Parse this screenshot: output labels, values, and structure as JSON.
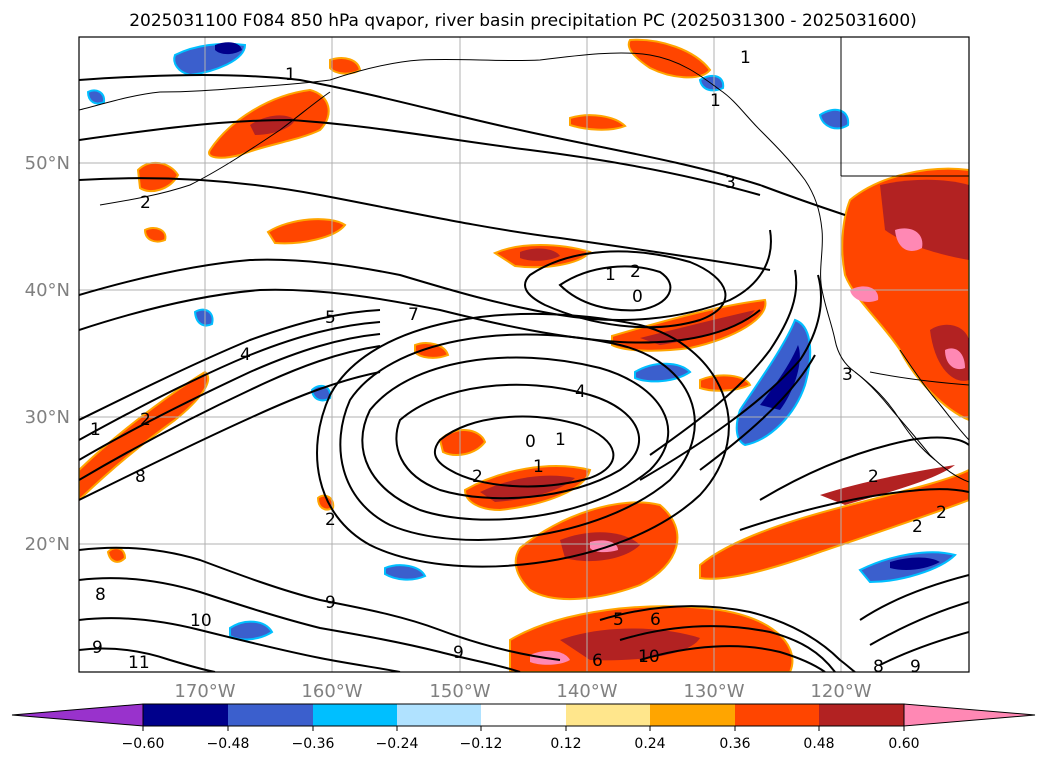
{
  "title": "2025031100 F084 850 hPa qvapor, river basin precipitation PC (2025031300 - 2025031600)",
  "map": {
    "lat_labels": [
      "50°N",
      "40°N",
      "30°N",
      "20°N"
    ],
    "lon_labels": [
      "170°W",
      "160°W",
      "150°W",
      "140°W",
      "130°W",
      "120°W"
    ],
    "axis_label_color": "#808080",
    "contour_labels": [
      "1",
      "1",
      "1",
      "3",
      "2",
      "1",
      "2",
      "0",
      "5",
      "7",
      "4",
      "4",
      "1",
      "2",
      "8",
      "0",
      "1",
      "2",
      "1",
      "2",
      "2",
      "2",
      "8",
      "9",
      "10",
      "9",
      "11",
      "5",
      "6",
      "9",
      "10",
      "8",
      "9",
      "6",
      "3",
      "2"
    ]
  },
  "colorbar": {
    "ticks": [
      "−0.60",
      "−0.48",
      "−0.36",
      "−0.24",
      "−0.12",
      "0.12",
      "0.24",
      "0.36",
      "0.48",
      "0.60"
    ],
    "colors": [
      "#9932cc",
      "#00008b",
      "#3b5fcd",
      "#00bfff",
      "#b0e2ff",
      "#ffffff",
      "#ffe68c",
      "#ffa500",
      "#ff4500",
      "#b22222",
      "#ff88b4"
    ]
  }
}
